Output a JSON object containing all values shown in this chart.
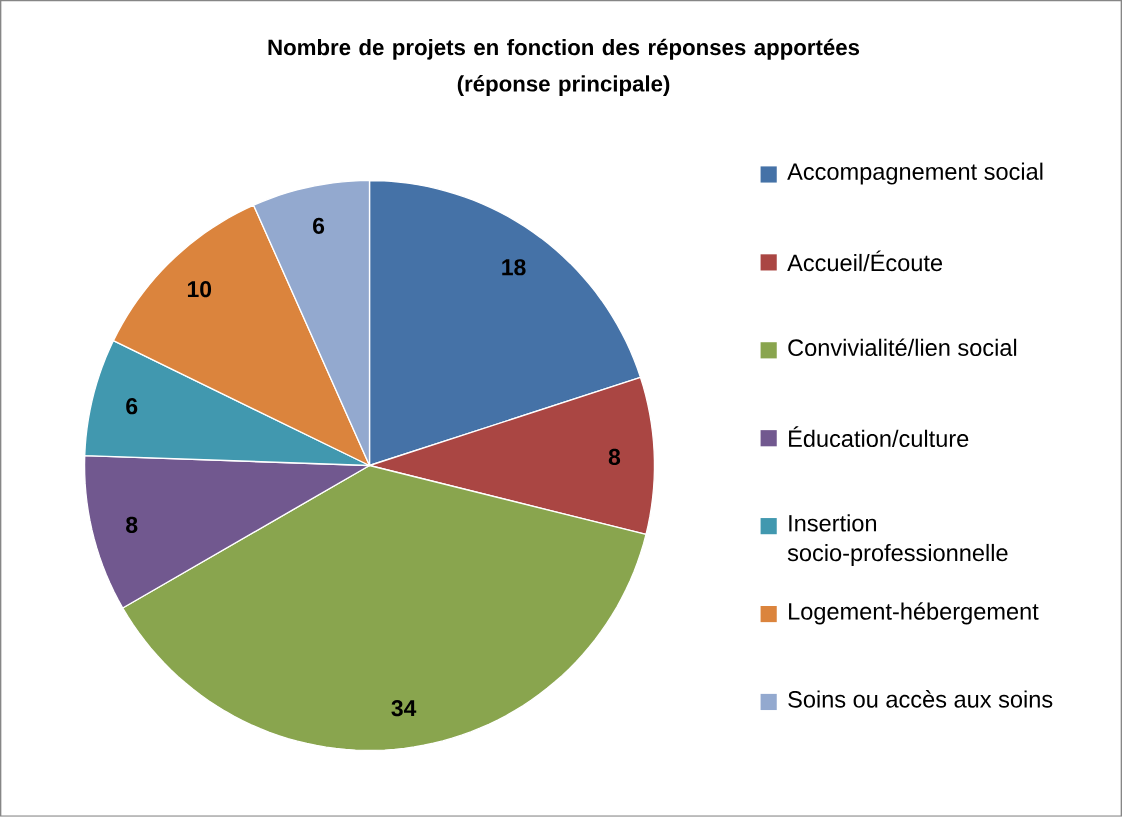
{
  "chart_data": {
    "type": "pie",
    "title": "Nombre de projets en fonction des réponses apportées\n(réponse principale)",
    "categories": [
      "Accompagnement social",
      "Accueil/Écoute",
      "Convivialité/lien social",
      "Éducation/culture",
      "Insertion socio-professionnelle",
      "Logement-hébergement",
      "Soins ou accès aux soins"
    ],
    "values": [
      18,
      8,
      34,
      8,
      6,
      10,
      6
    ],
    "colors": [
      "#4572a7",
      "#aa4643",
      "#89a54e",
      "#71588f",
      "#4198af",
      "#db843d",
      "#93a9cf"
    ],
    "data_labels": true,
    "legend": "right"
  }
}
